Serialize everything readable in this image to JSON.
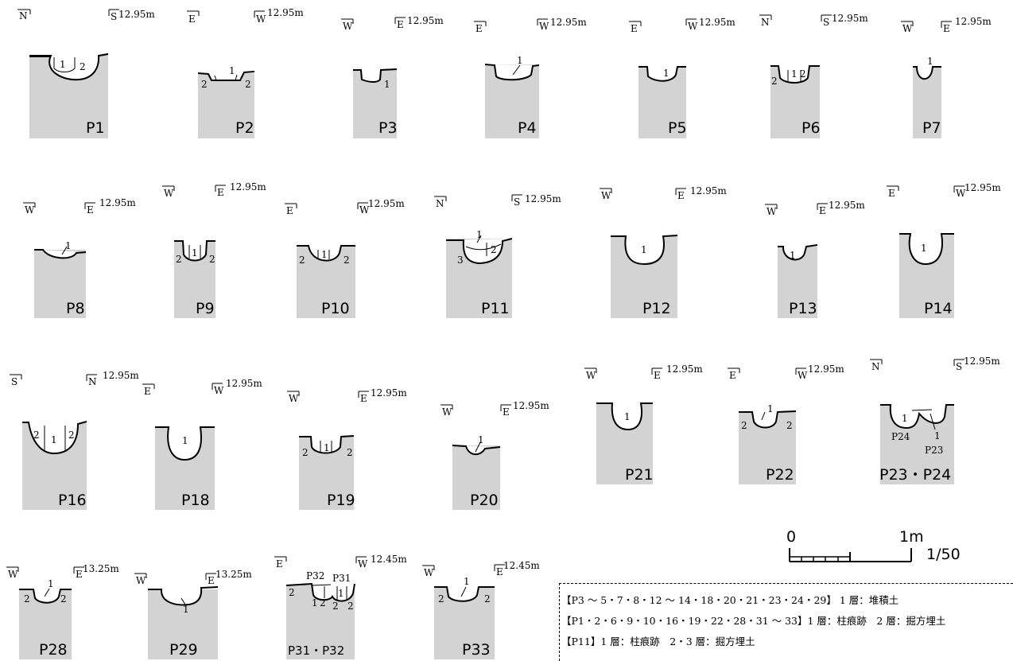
{
  "elevation_labels": {
    "e1295": "12.95m",
    "e1325": "13.25m",
    "e1245": "12.45m"
  },
  "pits": [
    {
      "id": "P1",
      "label": "P1",
      "dirs": [
        "N",
        "S"
      ],
      "elev": "12.95m",
      "layers": [
        "1",
        "2"
      ]
    },
    {
      "id": "P2",
      "label": "P2",
      "dirs": [
        "E",
        "W"
      ],
      "elev": "12.95m",
      "layers": [
        "1",
        "2",
        "2"
      ]
    },
    {
      "id": "P3",
      "label": "P3",
      "dirs": [
        "W",
        "E"
      ],
      "elev": "12.95m",
      "layers": [
        "1"
      ]
    },
    {
      "id": "P4",
      "label": "P4",
      "dirs": [
        "E",
        "W"
      ],
      "elev": "12.95m",
      "layers": [
        "1"
      ]
    },
    {
      "id": "P5",
      "label": "P5",
      "dirs": [
        "E",
        "W"
      ],
      "elev": "12.95m",
      "layers": [
        "1"
      ]
    },
    {
      "id": "P6",
      "label": "P6",
      "dirs": [
        "N",
        "S"
      ],
      "elev": "12.95m",
      "layers": [
        "2",
        "1",
        "2"
      ]
    },
    {
      "id": "P7",
      "label": "P7",
      "dirs": [
        "W",
        "E"
      ],
      "elev": "12.95m",
      "layers": [
        "1"
      ]
    },
    {
      "id": "P8",
      "label": "P8",
      "dirs": [
        "W",
        "E"
      ],
      "elev": "12.95m",
      "layers": [
        "1"
      ]
    },
    {
      "id": "P9",
      "label": "P9",
      "dirs": [
        "W",
        "E"
      ],
      "elev": "12.95m",
      "layers": [
        "2",
        "1",
        "2"
      ]
    },
    {
      "id": "P10",
      "label": "P10",
      "dirs": [
        "E",
        "W"
      ],
      "elev": "12.95m",
      "layers": [
        "2",
        "1",
        "2"
      ]
    },
    {
      "id": "P11",
      "label": "P11",
      "dirs": [
        "N",
        "S"
      ],
      "elev": "12.95m",
      "layers": [
        "1",
        "2",
        "3"
      ]
    },
    {
      "id": "P12",
      "label": "P12",
      "dirs": [
        "W",
        "E"
      ],
      "elev": "12.95m",
      "layers": [
        "1"
      ]
    },
    {
      "id": "P13",
      "label": "P13",
      "dirs": [
        "W",
        "E"
      ],
      "elev": "12.95m",
      "layers": [
        "1"
      ]
    },
    {
      "id": "P14",
      "label": "P14",
      "dirs": [
        "E",
        "W"
      ],
      "elev": "12.95m",
      "layers": [
        "1"
      ]
    },
    {
      "id": "P16",
      "label": "P16",
      "dirs": [
        "S",
        "N"
      ],
      "elev": "12.95m",
      "layers": [
        "2",
        "1",
        "2"
      ]
    },
    {
      "id": "P18",
      "label": "P18",
      "dirs": [
        "E",
        "W"
      ],
      "elev": "12.95m",
      "layers": [
        "1"
      ]
    },
    {
      "id": "P19",
      "label": "P19",
      "dirs": [
        "W",
        "E"
      ],
      "elev": "12.95m",
      "layers": [
        "2",
        "1",
        "2"
      ]
    },
    {
      "id": "P20",
      "label": "P20",
      "dirs": [
        "W",
        "E"
      ],
      "elev": "12.95m",
      "layers": [
        "1"
      ]
    },
    {
      "id": "P21",
      "label": "P21",
      "dirs": [
        "W",
        "E"
      ],
      "elev": "12.95m",
      "layers": [
        "1"
      ]
    },
    {
      "id": "P22",
      "label": "P22",
      "dirs": [
        "E",
        "W"
      ],
      "elev": "12.95m",
      "layers": [
        "1",
        "2",
        "2"
      ]
    },
    {
      "id": "P23P24",
      "label": "P23・P24",
      "dirs": [
        "N",
        "S"
      ],
      "elev": "12.95m",
      "layers": [
        "1",
        "P24",
        "1",
        "P23"
      ]
    },
    {
      "id": "P28",
      "label": "P28",
      "dirs": [
        "W",
        "E"
      ],
      "elev": "13.25m",
      "layers": [
        "1",
        "2",
        "2"
      ]
    },
    {
      "id": "P29",
      "label": "P29",
      "dirs": [
        "W",
        "E"
      ],
      "elev": "13.25m",
      "layers": [
        "1"
      ]
    },
    {
      "id": "P31P32",
      "label": "P31・P32",
      "dirs": [
        "E",
        "W"
      ],
      "elev": "12.45m",
      "layers": [
        "P32",
        "P31",
        "2",
        "1",
        "1",
        "2",
        "2",
        "2"
      ]
    },
    {
      "id": "P33",
      "label": "P33",
      "dirs": [
        "W",
        "E"
      ],
      "elev": "12.45m",
      "layers": [
        "1",
        "2",
        "2"
      ]
    }
  ],
  "scale": {
    "zero": "0",
    "one": "1m",
    "ratio": "1/50"
  },
  "legend": [
    "【P3 ～ 5・7・8・12 ～ 14・18・20・21・23・24・29】 1 層：堆積土",
    "【P1・2・6・9・10・16・19・22・28・31 ～ 33】1 層：柱痕跡　2 層：掘方埋土",
    "【P11】1 層：柱痕跡　2・3 層：掘方埋土"
  ]
}
